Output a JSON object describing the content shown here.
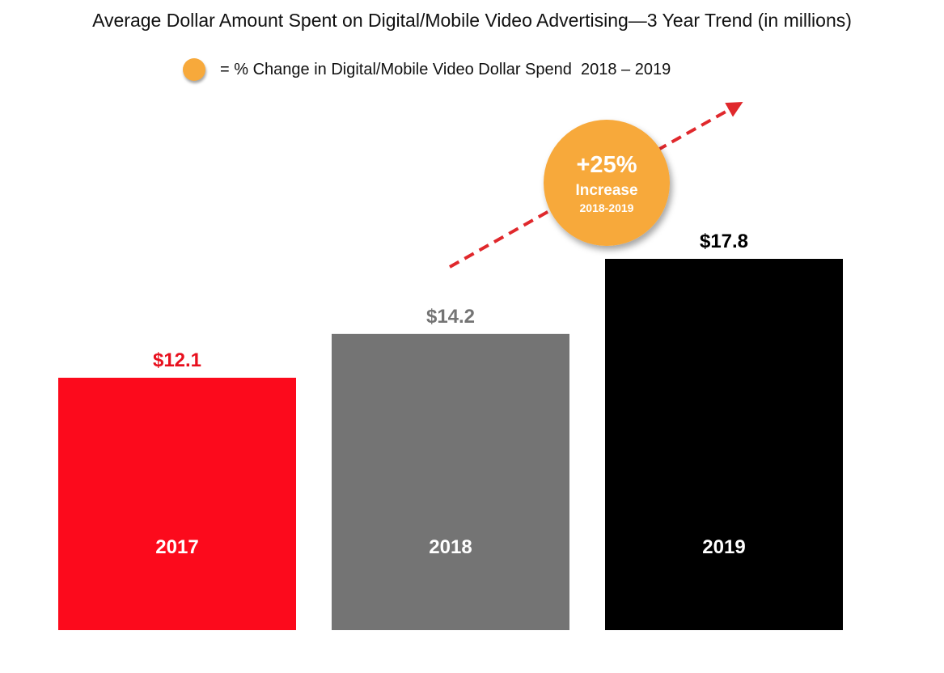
{
  "chart_data": {
    "type": "bar",
    "title": "Average Dollar Amount Spent on Digital/Mobile Video Advertising—3 Year Trend (in millions)",
    "categories": [
      "2017",
      "2018",
      "2019"
    ],
    "values": [
      12.1,
      14.2,
      17.8
    ],
    "value_labels": [
      "$12.1",
      "$14.2",
      "$17.8"
    ],
    "bar_colors": [
      "#fc0a1c",
      "#747474",
      "#000000"
    ],
    "label_colors": [
      "#e8101e",
      "#747474",
      "#000000"
    ],
    "category_label_color": "#ffffff",
    "ylim": [
      0,
      17.8
    ],
    "grid": false,
    "legend": {
      "text": "= % Change in Digital/Mobile Video Dollar Spend  2018 – 2019",
      "marker_color": "#f7a93b",
      "placement": "top-center"
    },
    "annotation": {
      "value": "+25%",
      "label": "Increase",
      "period": "2018-2019",
      "badge_color": "#f7a93b",
      "arrow_color": "#e0282c"
    }
  }
}
